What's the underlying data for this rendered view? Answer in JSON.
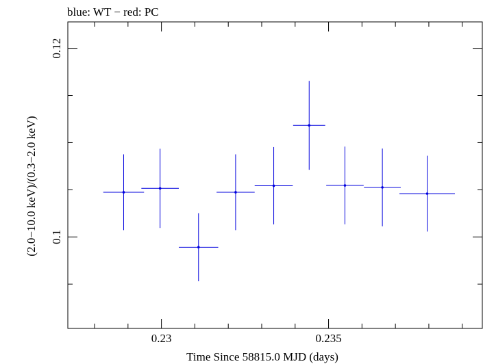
{
  "chart_data": {
    "type": "scatter",
    "title": "blue: WT − red: PC",
    "xlabel": "Time Since 58815.0 MJD (days)",
    "ylabel": "(2.0−10.0 keV)/(0.3−2.0 keV)",
    "xlim": [
      0.2272,
      0.2396
    ],
    "ylim": [
      0.0903,
      0.1228
    ],
    "x_ticks": [
      0.23,
      0.235
    ],
    "x_tick_labels": [
      "0.23",
      "0.235"
    ],
    "y_ticks": [
      0.1,
      0.12
    ],
    "y_tick_labels": [
      "0.1",
      "0.12"
    ],
    "grid": false,
    "series": [
      {
        "color": "#0000dd",
        "points": [
          {
            "x": 0.22887,
            "y": 0.10474,
            "xerr": 0.00061,
            "yerr": 0.00402
          },
          {
            "x": 0.22996,
            "y": 0.10515,
            "xerr": 0.00056,
            "yerr": 0.0042
          },
          {
            "x": 0.23111,
            "y": 0.09891,
            "xerr": 0.00059,
            "yerr": 0.00361
          },
          {
            "x": 0.23222,
            "y": 0.10474,
            "xerr": 0.00057,
            "yerr": 0.00402
          },
          {
            "x": 0.23336,
            "y": 0.10543,
            "xerr": 0.00057,
            "yerr": 0.0041
          },
          {
            "x": 0.23442,
            "y": 0.11183,
            "xerr": 0.00048,
            "yerr": 0.00471
          },
          {
            "x": 0.23549,
            "y": 0.10546,
            "xerr": 0.00056,
            "yerr": 0.00412
          },
          {
            "x": 0.23661,
            "y": 0.10525,
            "xerr": 0.00055,
            "yerr": 0.00412
          },
          {
            "x": 0.23795,
            "y": 0.10459,
            "xerr": 0.00083,
            "yerr": 0.00402
          }
        ]
      }
    ]
  }
}
